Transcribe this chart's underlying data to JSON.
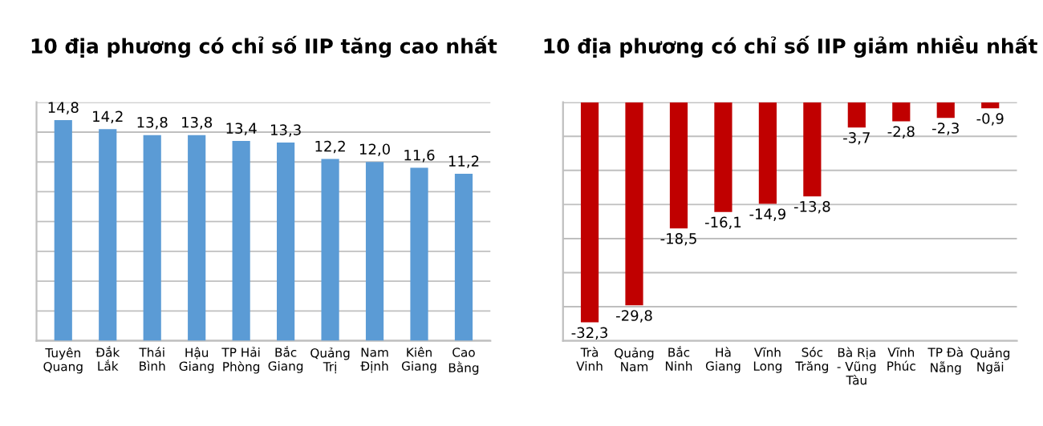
{
  "chart_data": [
    {
      "type": "bar",
      "title": "10 địa phương có chỉ số IIP tăng cao nhất",
      "categories": [
        "Tuyên\nQuang",
        "Đắk\nLắk",
        "Thái\nBình",
        "Hậu\nGiang",
        "TP Hải\nPhòng",
        "Bắc\nGiang",
        "Quảng\nTrị",
        "Nam\nĐịnh",
        "Kiên\nGiang",
        "Cao\nBằng"
      ],
      "series": [
        {
          "color": "#5b9bd5",
          "values": [
            14.8,
            14.2,
            13.8,
            13.8,
            13.4,
            13.3,
            12.2,
            12.0,
            11.6,
            11.2
          ],
          "value_labels": [
            "14,8",
            "14,2",
            "13,8",
            "13,8",
            "13,4",
            "13,3",
            "12,2",
            "12,0",
            "11,6",
            "11,2"
          ]
        }
      ],
      "ylim": [
        0,
        16
      ],
      "yticks": [
        {
          "value": 0,
          "label": null
        },
        {
          "value": 2,
          "label": null
        },
        {
          "value": 4,
          "label": null
        },
        {
          "value": 6,
          "label": null
        },
        {
          "value": 8,
          "label": null
        },
        {
          "value": 10,
          "label": null
        },
        {
          "value": 12,
          "label": null
        },
        {
          "value": 14,
          "label": null
        },
        {
          "value": 16,
          "label": null
        }
      ],
      "grid": "y",
      "tick_labels": "x"
    },
    {
      "type": "bar",
      "title": "10 địa phương có chỉ số IIP giảm nhiều nhất",
      "categories": [
        "Trà\nVinh",
        "Quảng\nNam",
        "Bắc\nNinh",
        "Hà\nGiang",
        "Vĩnh\nLong",
        "Sóc\nTrăng",
        "Bà Rịa\n- Vũng\nTàu",
        "Vĩnh\nPhúc",
        "TP Đà\nNẵng",
        "Quảng\nNgãi"
      ],
      "series": [
        {
          "color": "#c00000",
          "values": [
            -32.3,
            -29.8,
            -18.5,
            -16.1,
            -14.9,
            -13.8,
            -3.7,
            -2.8,
            -2.3,
            -0.9
          ],
          "value_labels": [
            "-32,3",
            "-29,8",
            "-18,5",
            "-16,1",
            "-14,9",
            "-13,8",
            "-3,7",
            "-2,8",
            "-2,3",
            "-0,9"
          ]
        }
      ],
      "ylim": [
        -35,
        0
      ],
      "yticks": [
        {
          "value": -35,
          "label": null
        },
        {
          "value": -30,
          "label": null
        },
        {
          "value": -25,
          "label": null
        },
        {
          "value": -20,
          "label": null
        },
        {
          "value": -15,
          "label": null
        },
        {
          "value": -10,
          "label": null
        },
        {
          "value": -5,
          "label": null
        },
        {
          "value": 0,
          "label": null
        }
      ],
      "grid": "y",
      "tick_labels": "x"
    }
  ]
}
